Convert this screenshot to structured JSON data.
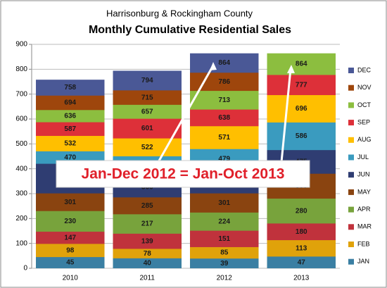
{
  "chart_data": {
    "type": "bar",
    "subtitle": "Harrisonburg  & Rockingham County",
    "title": "Monthly Cumulative Residential Sales",
    "categories": [
      "2010",
      "2011",
      "2012",
      "2013"
    ],
    "series": [
      {
        "name": "JAN",
        "color": "#3a7fa3",
        "values": [
          45,
          40,
          39,
          47
        ]
      },
      {
        "name": "FEB",
        "color": "#e0a20a",
        "values": [
          98,
          78,
          85,
          113
        ]
      },
      {
        "name": "MAR",
        "color": "#c0323c",
        "values": [
          147,
          139,
          151,
          180
        ]
      },
      {
        "name": "APR",
        "color": "#78a33c",
        "values": [
          230,
          217,
          224,
          280
        ]
      },
      {
        "name": "MAY",
        "color": "#8a4410",
        "values": [
          301,
          285,
          301,
          380
        ]
      },
      {
        "name": "JUN",
        "color": "#2f3d72",
        "values": [
          420,
          366,
          400,
          475
        ]
      },
      {
        "name": "JUL",
        "color": "#3a9bbf",
        "values": [
          470,
          450,
          479,
          586
        ]
      },
      {
        "name": "AUG",
        "color": "#ffbf00",
        "values": [
          532,
          522,
          571,
          696
        ]
      },
      {
        "name": "SEP",
        "color": "#dd3039",
        "values": [
          587,
          601,
          638,
          777
        ]
      },
      {
        "name": "OCT",
        "color": "#8cbe3f",
        "values": [
          636,
          657,
          713,
          864
        ]
      },
      {
        "name": "NOV",
        "color": "#9e460c",
        "values": [
          694,
          715,
          786,
          null
        ]
      },
      {
        "name": "DEC",
        "color": "#4a5896",
        "values": [
          758,
          794,
          864,
          null
        ]
      }
    ],
    "ylim": [
      0,
      900
    ],
    "yticks": [
      0,
      100,
      200,
      300,
      400,
      500,
      600,
      700,
      800,
      900
    ],
    "grid": true,
    "legend": "right",
    "annotation": "Jan-Dec 2012 = Jan-Oct 2013"
  }
}
